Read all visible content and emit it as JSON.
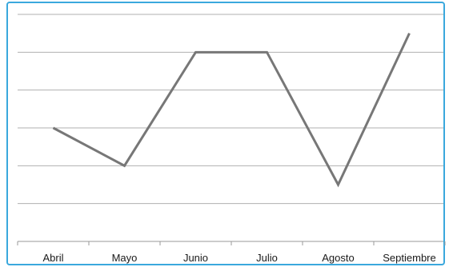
{
  "chart_data": {
    "type": "line",
    "title": "",
    "xlabel": "",
    "ylabel": "",
    "categories": [
      "Abril",
      "Mayo",
      "Junio",
      "Julio",
      "Agosto",
      "Septiembre"
    ],
    "series": [
      {
        "values": [
          3.0,
          2.0,
          5.0,
          5.0,
          1.5,
          5.5
        ]
      }
    ],
    "ylim": [
      0,
      6
    ],
    "y_ticks_labeled": false,
    "grid": true,
    "colors": {
      "frame": "#3aa8dd",
      "line": "#777777",
      "grid": "#b0b0b0",
      "axis": "#9a9a9a"
    }
  }
}
